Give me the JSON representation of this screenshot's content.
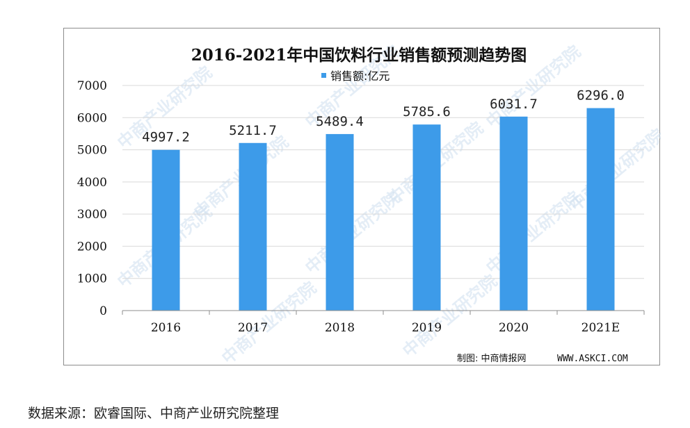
{
  "chart_data": {
    "type": "bar",
    "title": "2016-2021年中国饮料行业销售额预测趋势图",
    "legend": {
      "entries": [
        "销售额:亿元"
      ],
      "placement": "top-center"
    },
    "categories": [
      "2016",
      "2017",
      "2018",
      "2019",
      "2020",
      "2021E"
    ],
    "series": [
      {
        "name": "销售额:亿元",
        "values": [
          4997.2,
          5211.7,
          5489.4,
          5785.6,
          6031.7,
          6296.0
        ],
        "value_labels": [
          "4997.2",
          "5211.7",
          "5489.4",
          "5785.6",
          "6031.7",
          "6296.0"
        ],
        "color": "#3d9be9"
      }
    ],
    "xlabel": "",
    "ylabel": "",
    "ylim": [
      0,
      7000
    ],
    "yticks": [
      0,
      1000,
      2000,
      3000,
      4000,
      5000,
      6000,
      7000
    ],
    "ytick_labels": [
      "0",
      "1000",
      "2000",
      "3000",
      "4000",
      "5000",
      "6000",
      "7000"
    ],
    "grid": true,
    "gridline_color": "#d9d9d9",
    "axis_color": "#8c8c8c"
  },
  "credit": {
    "label": "制图: 中商情报网",
    "url": "WWW.ASKCI.COM"
  },
  "watermark": {
    "text": "中商产业研究院",
    "color": "#cfe0f0"
  },
  "source_note": "数据来源：欧睿国际、中商产业研究院整理"
}
